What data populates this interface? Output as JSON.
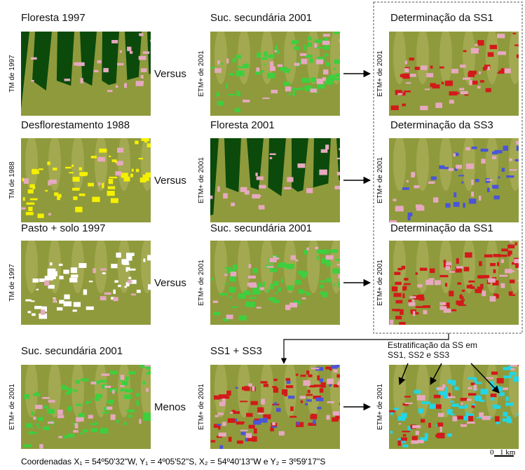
{
  "rows": [
    {
      "operator": "Versus",
      "panels": [
        {
          "title": "Floresta 1997",
          "side_label": "TM de 1997"
        },
        {
          "title": "Suc. secundária  2001",
          "side_label": "ETM+ de 2001"
        },
        {
          "title": "Determinação da SS1",
          "side_label": "ETM+ de 2001"
        }
      ]
    },
    {
      "operator": "Versus",
      "panels": [
        {
          "title": "Desflorestamento 1988",
          "side_label": "TM de 1988"
        },
        {
          "title": "Floresta  2001",
          "side_label": "ETM+ de 2001"
        },
        {
          "title": "Determinação da SS3",
          "side_label": "ETM+ de 2001"
        }
      ]
    },
    {
      "operator": "Versus",
      "panels": [
        {
          "title": "Pasto + solo 1997",
          "side_label": "TM de 1997"
        },
        {
          "title": "Suc. secundária  2001",
          "side_label": "ETM+ de 2001"
        },
        {
          "title": "Determinação da SS1",
          "side_label": "ETM+ de 2001"
        }
      ]
    },
    {
      "operator": "Menos",
      "panels": [
        {
          "title": "Suc. secundária  2001",
          "side_label": "ETM+ de 2001"
        },
        {
          "title": "SS1 + SS3",
          "side_label": "ETM+ de 2001"
        },
        {
          "annotation": [
            "Estratificação da SS em",
            "SS1, SS2 e SS3"
          ],
          "side_label": "ETM+ de 2001"
        }
      ]
    }
  ],
  "footer": "Coordenadas X₁ = 54º50'32\"W, Y₁ = 4º05'52\"S, X₂ = 54º40'13\"W e Y₂ = 3º59'17\"S",
  "scale_bar": {
    "start": "0",
    "end": "1 km"
  }
}
